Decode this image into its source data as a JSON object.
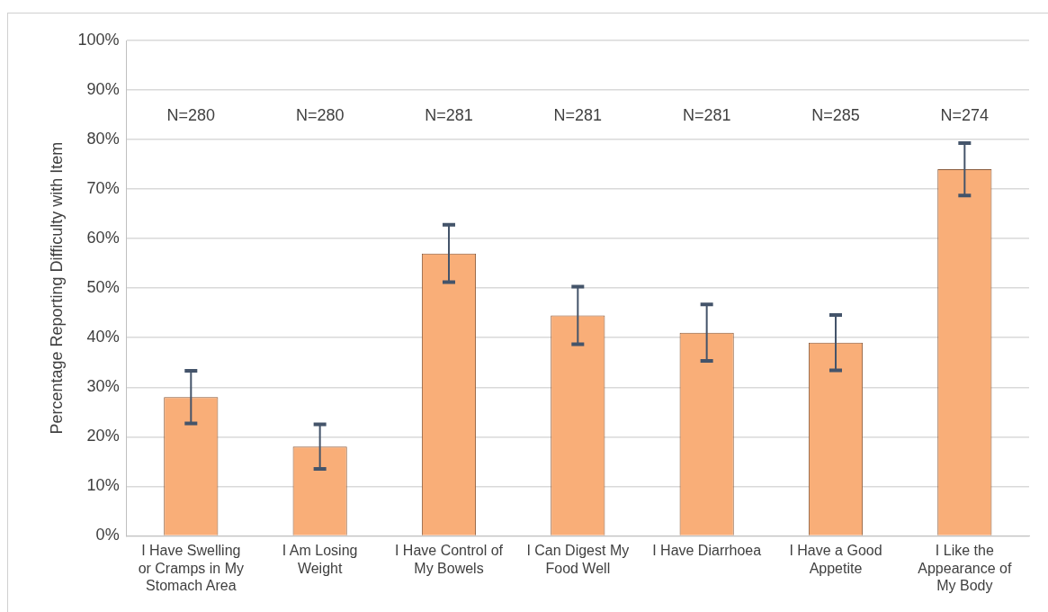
{
  "chart_data": {
    "type": "bar",
    "ylabel": "Percentage Reporting Difficulty with Item",
    "categories": [
      "I Have Swelling or Cramps in My Stomach Area",
      "I Am Losing Weight",
      "I Have Control of My Bowels",
      "I Can Digest My Food Well",
      "I Have Diarrhoea",
      "I Have a Good Appetite",
      "I Like the Appearance of My Body"
    ],
    "values": [
      28,
      18,
      57,
      44.5,
      41,
      39,
      74
    ],
    "errors": [
      5.3,
      4.5,
      5.8,
      5.8,
      5.7,
      5.6,
      5.3
    ],
    "color": "#f9ae78",
    "ylim": [
      0,
      100
    ],
    "yticks": [
      {
        "value": 0,
        "label": "0%"
      },
      {
        "value": 10,
        "label": "10%"
      },
      {
        "value": 20,
        "label": "20%"
      },
      {
        "value": 30,
        "label": "30%"
      },
      {
        "value": 40,
        "label": "40%"
      },
      {
        "value": 50,
        "label": "50%"
      },
      {
        "value": 60,
        "label": "60%"
      },
      {
        "value": 70,
        "label": "70%"
      },
      {
        "value": 80,
        "label": "80%"
      },
      {
        "value": 90,
        "label": "90%"
      },
      {
        "value": 100,
        "label": "100%"
      }
    ],
    "annotations": [
      "N=280",
      "N=280",
      "N=281",
      "N=281",
      "N=281",
      "N=285",
      "N=274"
    ],
    "grid": "y",
    "legend": false
  }
}
